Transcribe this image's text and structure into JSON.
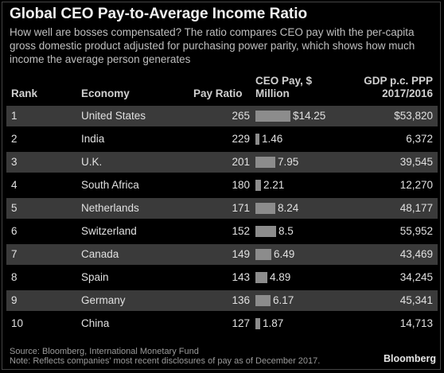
{
  "chart_data": {
    "type": "table",
    "title": "Global CEO Pay-to-Average Income Ratio",
    "subtitle": "How well are bosses compensated? The ratio compares CEO pay with the per-capita gross domestic product adjusted for purchasing power parity, which shows how much income the average person generates",
    "columns": {
      "rank": "Rank",
      "economy": "Economy",
      "ratio": "Pay Ratio",
      "pay_line1": "CEO Pay, $",
      "pay_line2": "Million",
      "gdp_line1": "GDP p.c. PPP",
      "gdp_line2": "2017/2016"
    },
    "rows": [
      {
        "rank": "1",
        "economy": "United States",
        "ratio": "265",
        "pay": 14.25,
        "pay_label": "$14.25",
        "gdp": "$53,820"
      },
      {
        "rank": "2",
        "economy": "India",
        "ratio": "229",
        "pay": 1.46,
        "pay_label": "1.46",
        "gdp": "6,372"
      },
      {
        "rank": "3",
        "economy": "U.K.",
        "ratio": "201",
        "pay": 7.95,
        "pay_label": "7.95",
        "gdp": "39,545"
      },
      {
        "rank": "4",
        "economy": "South Africa",
        "ratio": "180",
        "pay": 2.21,
        "pay_label": "2.21",
        "gdp": "12,270"
      },
      {
        "rank": "5",
        "economy": "Netherlands",
        "ratio": "171",
        "pay": 8.24,
        "pay_label": "8.24",
        "gdp": "48,177"
      },
      {
        "rank": "6",
        "economy": "Switzerland",
        "ratio": "152",
        "pay": 8.5,
        "pay_label": "8.5",
        "gdp": "55,952"
      },
      {
        "rank": "7",
        "economy": "Canada",
        "ratio": "149",
        "pay": 6.49,
        "pay_label": "6.49",
        "gdp": "43,469"
      },
      {
        "rank": "8",
        "economy": "Spain",
        "ratio": "143",
        "pay": 4.89,
        "pay_label": "4.89",
        "gdp": "34,245"
      },
      {
        "rank": "9",
        "economy": "Germany",
        "ratio": "136",
        "pay": 6.17,
        "pay_label": "6.17",
        "gdp": "45,341"
      },
      {
        "rank": "10",
        "economy": "China",
        "ratio": "127",
        "pay": 1.87,
        "pay_label": "1.87",
        "gdp": "14,713"
      }
    ],
    "bar_color": "#8c8c8c",
    "stripe_color": "#3a3a3a"
  },
  "footer": {
    "source": "Source: Bloomberg, International Monetary Fund",
    "note": "Note: Reflects companies' most recent disclosures of pay as of December 2017.",
    "brand": "Bloomberg"
  }
}
